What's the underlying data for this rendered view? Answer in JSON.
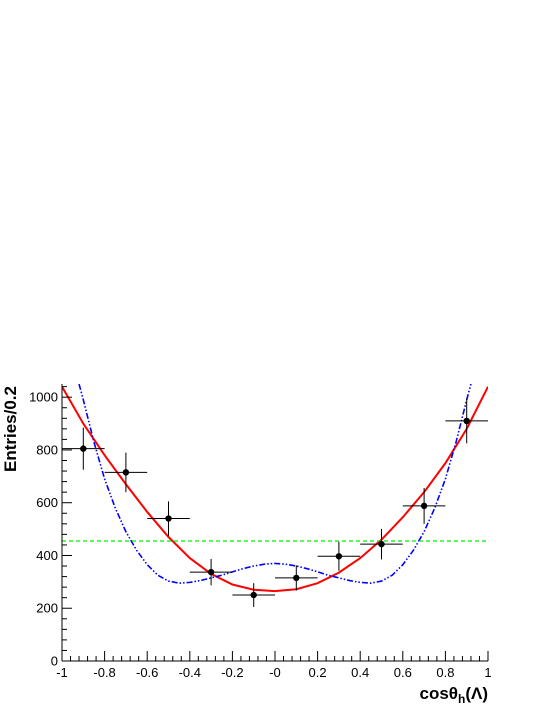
{
  "chart_data": {
    "type": "scatter",
    "title": "",
    "xlabel": "cosθh(Λ)",
    "xlabel_parts": {
      "main": "cosθ",
      "sub": "h",
      "tail": "(Λ)"
    },
    "ylabel": "Entries/0.2",
    "xlim": [
      -1,
      1
    ],
    "ylim": [
      0,
      1050
    ],
    "x_ticks": [
      -1,
      -0.8,
      -0.6,
      -0.4,
      -0.2,
      0,
      0.2,
      0.4,
      0.6,
      0.8,
      1
    ],
    "x_tick_labels": [
      "-1",
      "-0.8",
      "-0.6",
      "-0.4",
      "-0.2",
      "-0",
      "0.2",
      "0.4",
      "0.6",
      "0.8",
      "1"
    ],
    "y_ticks": [
      0,
      200,
      400,
      600,
      800,
      1000
    ],
    "y_tick_labels": [
      "0",
      "200",
      "400",
      "600",
      "800",
      "1000"
    ],
    "grid": false,
    "legend": "none",
    "series": [
      {
        "style": "markers-with-error-bars",
        "color": "#000000",
        "points": [
          {
            "x": -0.9,
            "y": 805,
            "xerr": 0.1,
            "yerr": 80
          },
          {
            "x": -0.7,
            "y": 715,
            "xerr": 0.1,
            "yerr": 75
          },
          {
            "x": -0.5,
            "y": 540,
            "xerr": 0.1,
            "yerr": 65
          },
          {
            "x": -0.3,
            "y": 337,
            "xerr": 0.1,
            "yerr": 50
          },
          {
            "x": -0.1,
            "y": 250,
            "xerr": 0.1,
            "yerr": 45
          },
          {
            "x": 0.1,
            "y": 315,
            "xerr": 0.1,
            "yerr": 48
          },
          {
            "x": 0.3,
            "y": 397,
            "xerr": 0.1,
            "yerr": 55
          },
          {
            "x": 0.5,
            "y": 443,
            "xerr": 0.1,
            "yerr": 58
          },
          {
            "x": 0.7,
            "y": 588,
            "xerr": 0.1,
            "yerr": 68
          },
          {
            "x": 0.9,
            "y": 910,
            "xerr": 0.1,
            "yerr": 85
          }
        ]
      },
      {
        "style": "solid-curve",
        "color": "#ff0000",
        "x": [
          -1,
          -0.9,
          -0.8,
          -0.7,
          -0.6,
          -0.5,
          -0.4,
          -0.3,
          -0.2,
          -0.1,
          0,
          0.1,
          0.2,
          0.3,
          0.4,
          0.5,
          0.6,
          0.7,
          0.8,
          0.9,
          1
        ],
        "y": [
          1040,
          900,
          780,
          670,
          565,
          470,
          390,
          330,
          290,
          270,
          265,
          272,
          295,
          335,
          390,
          460,
          545,
          640,
          750,
          880,
          1040
        ]
      },
      {
        "style": "dash-dot-curve",
        "color": "#0000ff",
        "x": [
          -0.92,
          -0.9,
          -0.85,
          -0.8,
          -0.75,
          -0.7,
          -0.65,
          -0.6,
          -0.55,
          -0.5,
          -0.45,
          -0.4,
          -0.35,
          -0.3,
          -0.25,
          -0.2,
          -0.15,
          -0.1,
          -0.05,
          0,
          0.05,
          0.1,
          0.15,
          0.2,
          0.25,
          0.3,
          0.35,
          0.4,
          0.45,
          0.5,
          0.55,
          0.6,
          0.65,
          0.7,
          0.75,
          0.8,
          0.85,
          0.9,
          0.92
        ],
        "y": [
          1050,
          990,
          830,
          690,
          580,
          490,
          420,
          365,
          325,
          303,
          295,
          298,
          305,
          315,
          325,
          338,
          350,
          360,
          367,
          370,
          367,
          360,
          350,
          338,
          325,
          315,
          305,
          298,
          295,
          303,
          325,
          365,
          420,
          490,
          580,
          690,
          830,
          990,
          1050
        ]
      },
      {
        "style": "dashed-line",
        "color": "#00ee00",
        "x": [
          -1,
          1
        ],
        "y": [
          455,
          455
        ]
      }
    ]
  }
}
